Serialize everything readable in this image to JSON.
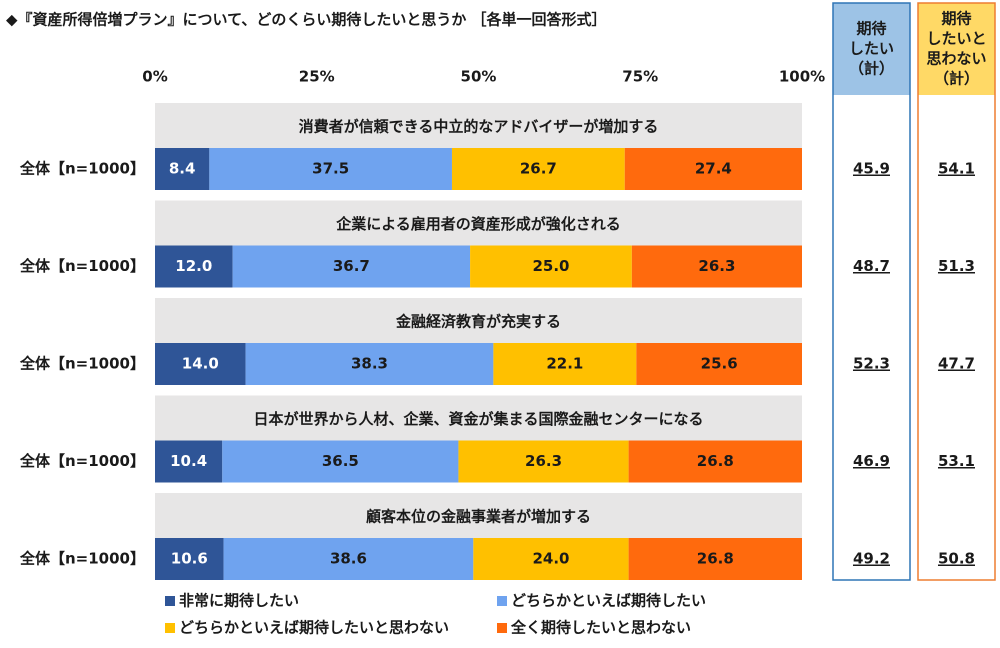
{
  "chart_data": {
    "type": "stacked-bar-horizontal",
    "title": "◆『資産所得倍増プラン』について、どのくらい期待したいと思うか ［各単一回答形式］",
    "categories": [
      "消費者が信頼できる中立的なアドバイザーが増加する",
      "企業による雇用者の資産形成が強化される",
      "金融経済教育が充実する",
      "日本が世界から人材、企業、資金が集まる国際金融センターになる",
      "顧客本位の金融事業者が増加する"
    ],
    "row_labels": [
      "全体【n=1000】",
      "全体【n=1000】",
      "全体【n=1000】",
      "全体【n=1000】",
      "全体【n=1000】"
    ],
    "xlim": [
      0,
      100
    ],
    "xticks": [
      {
        "value": 0,
        "label": "0%"
      },
      {
        "value": 25,
        "label": "25%"
      },
      {
        "value": 50,
        "label": "50%"
      },
      {
        "value": 75,
        "label": "75%"
      },
      {
        "value": 100,
        "label": "100%"
      }
    ],
    "grid": false,
    "series": [
      {
        "name": "非常に期待したい",
        "color": "#2f5597",
        "label_color": "#ffffff",
        "values": [
          8.4,
          12.0,
          14.0,
          10.4,
          10.6
        ],
        "value_labels": [
          "8.4",
          "12.0",
          "14.0",
          "10.4",
          "10.6"
        ]
      },
      {
        "name": "どちらかといえば期待したい",
        "color": "#6fa3ef",
        "label_color": "#1a1a1a",
        "values": [
          37.5,
          36.7,
          38.3,
          36.5,
          38.6
        ],
        "value_labels": [
          "37.5",
          "36.7",
          "38.3",
          "36.5",
          "38.6"
        ]
      },
      {
        "name": "どちらかといえば期待したいと思わない",
        "color": "#ffc000",
        "label_color": "#1a1a1a",
        "values": [
          26.7,
          25.0,
          22.1,
          26.3,
          24.0
        ],
        "value_labels": [
          "26.7",
          "25.0",
          "22.1",
          "26.3",
          "24.0"
        ]
      },
      {
        "name": "全く期待したいと思わない",
        "color": "#ff6a0d",
        "label_color": "#1a1a1a",
        "values": [
          27.4,
          26.3,
          25.6,
          26.8,
          26.8
        ],
        "value_labels": [
          "27.4",
          "26.3",
          "25.6",
          "26.8",
          "26.8"
        ]
      }
    ],
    "summaries": [
      {
        "header": [
          "期待",
          "したい",
          "（計）"
        ],
        "color": "#9dc3e6",
        "border": "#2e75b6",
        "values": [
          45.9,
          48.7,
          52.3,
          46.9,
          49.2
        ]
      },
      {
        "header": [
          "期待",
          "したいと",
          "思わない",
          "（計）"
        ],
        "color": "#ffd966",
        "border": "#ed7d31",
        "values": [
          54.1,
          51.3,
          47.7,
          53.1,
          50.8
        ]
      }
    ]
  }
}
